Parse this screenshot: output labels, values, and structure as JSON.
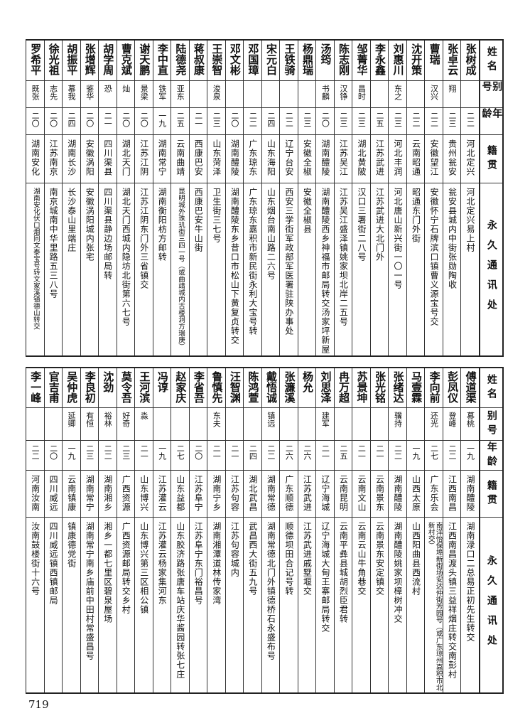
{
  "headers": {
    "name": "姓名",
    "alias": "别号",
    "age": "年龄",
    "origin": "籍贯",
    "address": "永久通讯处"
  },
  "top": [
    {
      "name": "张树成",
      "alias": "",
      "age": "二二",
      "origin": "河北定兴",
      "address": "河北定兴易上村"
    },
    {
      "name": "张卓云",
      "alias": "翔",
      "age": "二三",
      "origin": "贵州瓮安",
      "address": "瓮安县城内中街张勋陶收"
    },
    {
      "name": "曹瑞",
      "alias": "汉兴",
      "age": "二二",
      "origin": "安徽望江",
      "address": "安徽怀宁石牌滨口镇曹义源宝号交"
    },
    {
      "name": "沈开策",
      "alias": "",
      "age": "二二",
      "origin": "云南昭通",
      "address": "昭通东门外街"
    },
    {
      "name": "刘惠川",
      "alias": "东之",
      "age": "二三",
      "origin": "河北丰润",
      "address": "河北唐山新兴街一〇一号"
    },
    {
      "name": "李永鑫",
      "alias": "",
      "age": "二五",
      "origin": "江苏武进",
      "address": "江苏武进大北门外"
    },
    {
      "name": "邹菁华",
      "alias": "昌时",
      "age": "二三",
      "origin": "湖北黄陂",
      "address": "汉口三署街二八号"
    },
    {
      "name": "陈志刚",
      "alias": "汉铮",
      "age": "二三",
      "origin": "江苏吴江",
      "address": "江苏吴江盛泽镇姚家坝北岸二五号"
    },
    {
      "name": "汤筠",
      "alias": "书麟",
      "age": "二〇",
      "origin": "湖南醴陵",
      "address": "湖南醴陵西乡神福市邮局转交汤家坪新屋"
    },
    {
      "name": "杨鼎瑞",
      "alias": "",
      "age": "二三",
      "origin": "安徽全椒",
      "address": "安徽全椒县"
    },
    {
      "name": "王铁骑",
      "alias": "",
      "age": "二二",
      "origin": "辽宁台安",
      "address": "西安三学街军政部军医署驻陕办事处"
    },
    {
      "name": "宋元白",
      "alias": "",
      "age": "二四",
      "origin": "山东海阳",
      "address": "山东烟台南山路二六号"
    },
    {
      "name": "邓国璋",
      "alias": "",
      "age": "二二",
      "origin": "广东琼东",
      "address": "广东琼东嘉积市新民街永利大宝号转"
    },
    {
      "name": "邓文彬",
      "alias": "",
      "age": "二〇",
      "origin": "湖南醴陵",
      "address": "湖南醴陵东乡昔口市松山下黄复贞转交"
    },
    {
      "name": "王崇智",
      "alias": "浚泉",
      "age": "二三",
      "origin": "山东菏泽",
      "address": "卫生街三七号"
    },
    {
      "name": "蒋叔康",
      "alias": "",
      "age": "二一",
      "origin": "西康巴安",
      "address": "西康巴安牛山街"
    },
    {
      "name": "陆德尧",
      "alias": "亚东",
      "age": "二五",
      "origin": "云南曲靖",
      "address": "昆明城外珠玑街三四一号（或曲靖城内古楼洞方瑞庚）"
    },
    {
      "name": "李中直",
      "alias": "铁军",
      "age": "一九",
      "origin": "湖南常宁",
      "address": "湖南衡阳枋方邮转"
    },
    {
      "name": "谢天鹏",
      "alias": "景梁",
      "age": "二〇",
      "origin": "江苏江阴",
      "address": "江苏江阴东门外三省镇交"
    },
    {
      "name": "曹克斌",
      "alias": "灿",
      "age": "二〇",
      "origin": "湖北天门",
      "address": "湖北天门西城内隐坊北街第六七号"
    },
    {
      "name": "胡学周",
      "alias": "恐",
      "age": "二一",
      "origin": "四川渠县",
      "address": "四川渠县静边场邮局转"
    },
    {
      "name": "张增辉",
      "alias": "鉴华",
      "age": "二〇",
      "origin": "安徽涡阳",
      "address": "安徽涡阳城内张宅"
    },
    {
      "name": "胡振平",
      "alias": "慕我",
      "age": "二四",
      "origin": "湖南长沙",
      "address": "长沙泰山里端庄"
    },
    {
      "name": "徐光祖",
      "alias": "志先",
      "age": "二〇",
      "origin": "江苏南京",
      "address": "南京城南中华里路五三八号"
    },
    {
      "name": "罗希平",
      "alias": "既张",
      "age": "二〇",
      "origin": "湖南安化",
      "address": "湖南安化伏口烟同文泰宝号转文家溪镇德山转交"
    }
  ],
  "bottom": [
    {
      "name": "傅道渠",
      "alias": "慕桃",
      "age": "一九",
      "origin": "湖南醴陵",
      "address": "湖南渌口二总易正初先生转交"
    },
    {
      "name": "彭凤仪",
      "alias": "登峰",
      "age": "二二",
      "origin": "江西南昌",
      "address": "江西南昌渡头镇三益祥烟庄转交南彭村"
    },
    {
      "name": "李向前",
      "alias": "还光",
      "age": "二七",
      "origin": "广东乐会",
      "address": "南洋怡保埠新街场安达仲街芳园号（或广东琼州嘉积市北新村交）"
    },
    {
      "name": "马壹霖",
      "alias": "",
      "age": "一九",
      "origin": "山西太原",
      "address": "山西阳曲县西流村"
    },
    {
      "name": "张绪达",
      "alias": "骥持",
      "age": "二二",
      "origin": "湖南醴陵",
      "address": "湖南醴陵姚家坝樟树冲交"
    },
    {
      "name": "张光铭",
      "alias": "",
      "age": "二一",
      "origin": "云南景东",
      "address": "云南景东安定镇交"
    },
    {
      "name": "苏景坤",
      "alias": "",
      "age": "二一",
      "origin": "云南文山",
      "address": "云南云山牛角巷交"
    },
    {
      "name": "冉万超",
      "alias": "",
      "age": "二五",
      "origin": "云南昆明",
      "address": "云南平彝县城胡烈臣君转"
    },
    {
      "name": "刘思泽",
      "alias": "建军",
      "age": "二一",
      "origin": "辽宁海城",
      "address": "辽宁海城大甸王寨邮局转交"
    },
    {
      "name": "杨允",
      "alias": "",
      "age": "二六",
      "origin": "江苏武进",
      "address": "江苏武进戚墅堰交"
    },
    {
      "name": "张濂溪",
      "alias": "",
      "age": "二六",
      "origin": "广东顺德",
      "address": "顺德坝田合记号转"
    },
    {
      "name": "戴悟诚",
      "alias": "镇远",
      "age": "二二",
      "origin": "湖南常德",
      "address": "湖南常德北门外镇德桥石永盛布号"
    },
    {
      "name": "陈鸿萱",
      "alias": "",
      "age": "二四",
      "origin": "湖北武昌",
      "address": "武昌西大街五九号"
    },
    {
      "name": "汪智渊",
      "alias": "",
      "age": "二一",
      "origin": "江苏句容",
      "address": "江苏句容城内"
    },
    {
      "name": "鲁慎先",
      "alias": "东夫",
      "age": "二一",
      "origin": "湖南宁乡",
      "address": "湖南湘潭道林传家湾"
    },
    {
      "name": "李省吾",
      "alias": "",
      "age": "二〇",
      "origin": "江苏阜宁",
      "address": "江苏阜宁东门裕昌号"
    },
    {
      "name": "赵家庆",
      "alias": "",
      "age": "二七",
      "origin": "山东益都",
      "address": "山东胶济路张唐车站庆华酱园转张七庄"
    },
    {
      "name": "冯谆",
      "alias": "",
      "age": "一九",
      "origin": "江苏灌云",
      "address": "江苏灌云杨家集河东"
    },
    {
      "name": "王河滨",
      "alias": "淼",
      "age": "二一",
      "origin": "山东博兴",
      "address": "山东博兴第三区相公镇"
    },
    {
      "name": "莫令吾",
      "alias": "好奇",
      "age": "二三",
      "origin": "广西资源",
      "address": "广西资源邮局转交乡村"
    },
    {
      "name": "沈劲",
      "alias": "裕林",
      "age": "二二",
      "origin": "湖南湘乡",
      "address": "湘乡一都七里区碧泉屋场"
    },
    {
      "name": "李良初",
      "alias": "有恒",
      "age": "二三",
      "origin": "湖南常宁",
      "address": "湖南常宁南乡庙前中田村常盛昌号"
    },
    {
      "name": "吴仲虎",
      "alias": "延卿",
      "age": "一九",
      "origin": "云南镇康",
      "address": "镇康德党街"
    },
    {
      "name": "官吉甫",
      "alias": "",
      "age": "二〇",
      "origin": "四川威远",
      "address": "四川威远镇西镇邮局"
    },
    {
      "name": "李一峰",
      "alias": "",
      "age": "二二",
      "origin": "河南汝南",
      "address": "汝南鼓楼街十六号"
    }
  ],
  "page_number": "719"
}
